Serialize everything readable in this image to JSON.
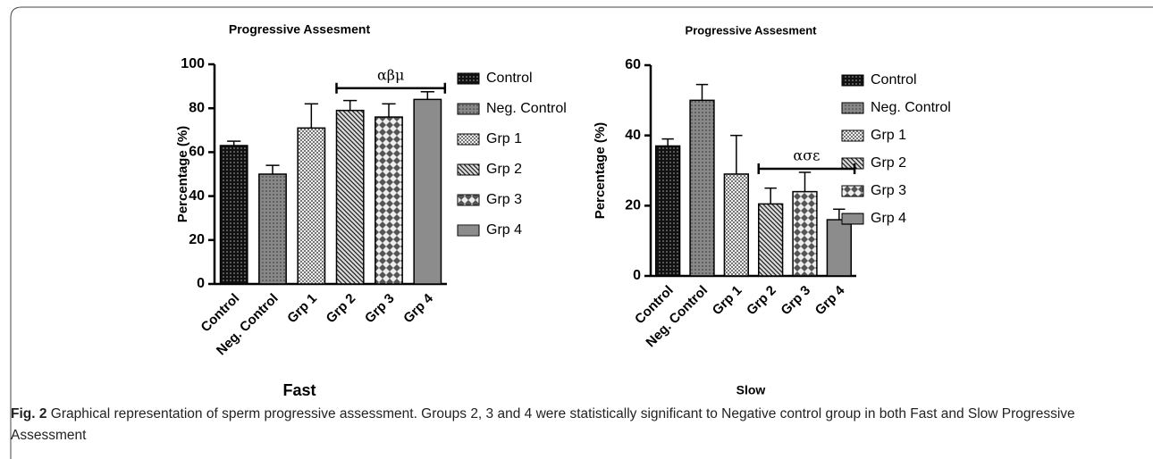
{
  "chart_data": [
    {
      "type": "bar",
      "title": "Progressive Assesment",
      "xlabel": "Fast",
      "ylabel": "Percentage (%)",
      "categories": [
        "Control",
        "Neg. Control",
        "Grp 1",
        "Grp 2",
        "Grp 3",
        "Grp 4"
      ],
      "values": [
        63,
        50,
        71,
        79,
        76,
        84
      ],
      "errors": [
        2,
        4,
        11,
        4.5,
        6,
        3.5
      ],
      "ylim": [
        0,
        100
      ],
      "yticks": [
        0,
        20,
        40,
        60,
        80,
        100
      ],
      "annotation": "αβμ"
    },
    {
      "type": "bar",
      "title": "Progressive Assesment",
      "xlabel": "Slow",
      "ylabel": "Percentage (%)",
      "categories": [
        "Control",
        "Neg. Control",
        "Grp 1",
        "Grp 2",
        "Grp 3",
        "Grp 4"
      ],
      "values": [
        37,
        50,
        29,
        20.5,
        24,
        16
      ],
      "errors": [
        2,
        4.5,
        11,
        4.5,
        5.5,
        3
      ],
      "ylim": [
        0,
        60
      ],
      "yticks": [
        0,
        20,
        40,
        60
      ],
      "annotation": "ασε"
    }
  ],
  "caption": {
    "label": "Fig. 2",
    "text": "Graphical representation of sperm progressive assessment. Groups 2, 3 and 4 were statistically significant to Negative control group in both Fast and Slow Progressive Assessment"
  }
}
